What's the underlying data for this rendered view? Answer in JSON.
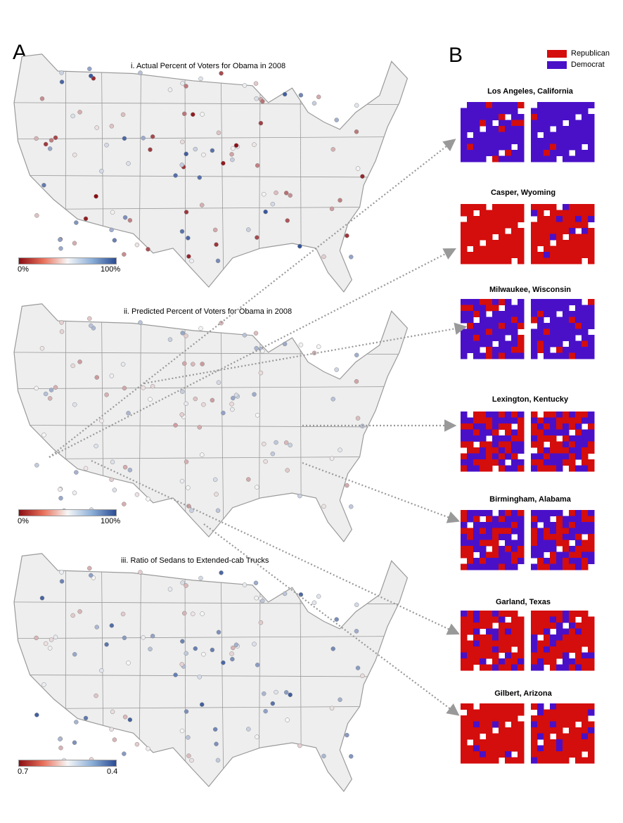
{
  "panel_a_label": "A",
  "panel_b_label": "B",
  "maps": [
    {
      "title": "i. Actual  Percent of Voters for Obama in 2008",
      "scale_left": "0%",
      "scale_right": "100%"
    },
    {
      "title": "ii. Predicted Percent of Voters for Obama in 2008",
      "scale_left": "0%",
      "scale_right": "100%"
    },
    {
      "title": "iii. Ratio of Sedans to Extended-cab Trucks",
      "scale_left": "0.7",
      "scale_right": "0.4"
    }
  ],
  "legend": {
    "republican_label": "Republican",
    "democrat_label": "Democrat",
    "republican_color": "#d40d0d",
    "democrat_color": "#4a10c8"
  },
  "cities": [
    {
      "name": "Los Angeles, California",
      "dem_share": 0.9
    },
    {
      "name": "Casper, Wyoming",
      "dem_share": 0.0
    },
    {
      "name": "Milwaukee, Wisconsin",
      "dem_share": 0.8
    },
    {
      "name": "Lexington, Kentucky",
      "dem_share": 0.35
    },
    {
      "name": "Birmingham, Alabama",
      "dem_share": 0.55
    },
    {
      "name": "Garland, Texas",
      "dem_share": 0.2
    },
    {
      "name": "Gilbert, Arizona",
      "dem_share": 0.05
    }
  ],
  "colors": {
    "map_fill": "#eeeeee",
    "state_border": "#9a9a9a",
    "scale_low": "#8b0d13",
    "scale_mid": "#f7f7f7",
    "scale_high": "#2b4c94",
    "arrow": "#999999"
  }
}
